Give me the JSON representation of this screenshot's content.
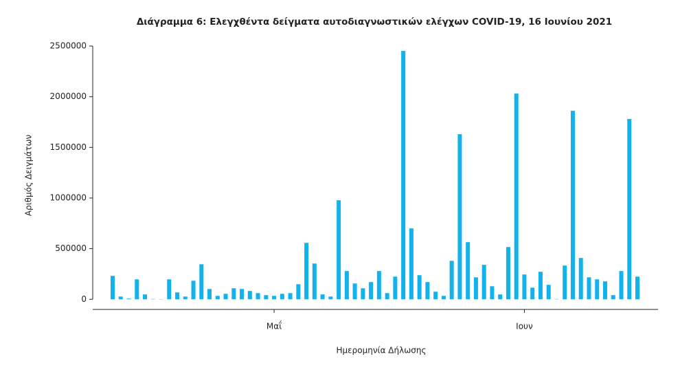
{
  "chart_data": {
    "type": "bar",
    "title": "Διάγραμμα 6: Ελεγχθέντα δείγματα αυτοδιαγνωστικών ελέγχων COVID-19, 16 Ιουνίου 2021",
    "x_label": "Ημερομηνία Δήλωσης",
    "y_label": "Αριθμός Δειγμάτων",
    "color": "#12b2ea",
    "categories": [
      null,
      null,
      null,
      null,
      null,
      null,
      null,
      null,
      null,
      null,
      null,
      null,
      null,
      null,
      null,
      null,
      null,
      null,
      null,
      null,
      "Μαΐ",
      null,
      null,
      null,
      null,
      null,
      null,
      null,
      null,
      null,
      null,
      null,
      null,
      null,
      null,
      null,
      null,
      null,
      null,
      null,
      null,
      null,
      null,
      null,
      null,
      null,
      null,
      null,
      null,
      null,
      null,
      "Ιουν",
      null,
      null,
      null,
      null,
      null,
      null,
      null,
      null,
      null,
      null,
      null,
      null,
      null,
      null,
      null
    ],
    "values": [
      231000,
      27000,
      7000,
      197000,
      48000,
      3000,
      2000,
      197000,
      68000,
      27000,
      183000,
      346000,
      102000,
      34000,
      54000,
      109000,
      102000,
      82000,
      61000,
      41000,
      34000,
      54000,
      61000,
      149000,
      557000,
      353000,
      48000,
      27000,
      978000,
      279000,
      156000,
      109000,
      170000,
      279000,
      61000,
      224000,
      2452000,
      700000,
      238000,
      170000,
      75000,
      34000,
      380000,
      1630000,
      564000,
      217000,
      340000,
      129000,
      48000,
      516000,
      2031000,
      245000,
      115000,
      272000,
      143000,
      3000,
      333000,
      1861000,
      408000,
      217000,
      197000,
      177000,
      41000,
      279000,
      1780000,
      224000,
      0
    ],
    "ylim": [
      -100000,
      2500000
    ],
    "yticks": [
      0,
      500000,
      1000000,
      1500000,
      2000000,
      2500000
    ]
  }
}
